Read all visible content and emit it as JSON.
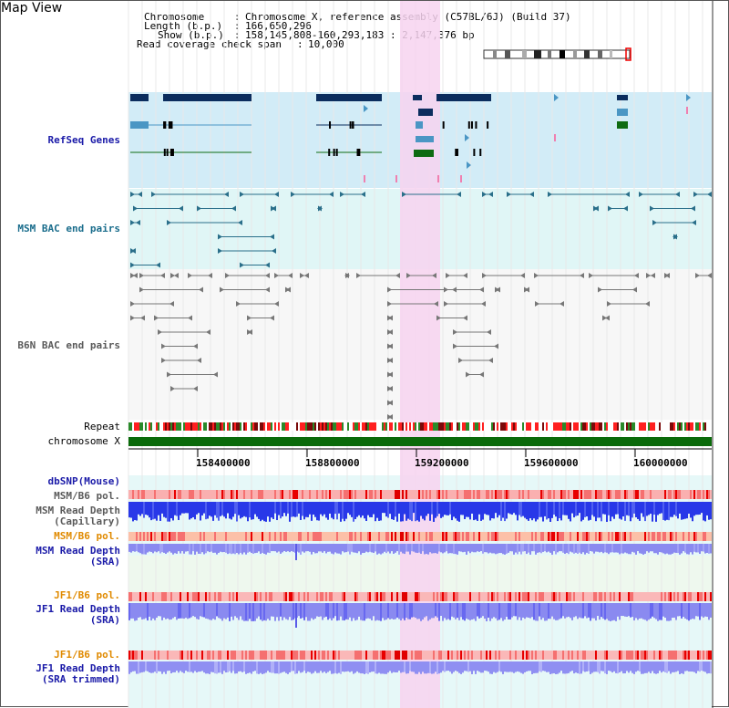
{
  "title": "Map View",
  "info": {
    "chromosome_label": "Chromosome",
    "chromosome_value": "Chromosome X, reference assembly (C57BL/6J) (Build 37)",
    "length_label": "Length (b.p.)",
    "length_value": "166,650,296",
    "show_label": "Show (b.p.)",
    "show_value": "158,145,808-160,293,183 : 2,147,376 bp",
    "coverage_label": "Read coverage check span",
    "coverage_value": "10,000"
  },
  "tracks": {
    "refseq": "RefSeq Genes",
    "msm_bac": "MSM BAC end pairs",
    "b6n_bac": "B6N BAC end pairs",
    "repeat": "Repeat",
    "chromosome": "chromosome X",
    "dbsnp": "dbSNP(Mouse)",
    "msm_b6_pol_1": "MSM/B6 pol.",
    "msm_read_depth_cap_1": "MSM Read Depth",
    "msm_read_depth_cap_2": "(Capillary)",
    "msm_b6_pol_2": "MSM/B6 pol.",
    "msm_read_depth_sra_1": "MSM Read Depth",
    "msm_read_depth_sra_2": "(SRA)",
    "jf1_b6_pol_1": "JF1/B6 pol.",
    "jf1_read_depth_sra_1": "JF1 Read Depth",
    "jf1_read_depth_sra_2": "(SRA)",
    "jf1_b6_pol_2": "JF1/B6 pol.",
    "jf1_read_depth_trim_1": "JF1 Read Depth",
    "jf1_read_depth_trim_2": "(SRA trimmed)"
  },
  "axis_ticks": [
    "158400000",
    "158800000",
    "159200000",
    "159600000",
    "160000000"
  ],
  "colors": {
    "refseq_bg": "#d2ecf7",
    "msm_bac_bg": "#e0f6f6",
    "highlight": "#f7d4f0",
    "gene_dark": "#0b2d5e",
    "gene_mid": "#4a96c4",
    "gene_green": "#0e6b12",
    "bac_teal": "#2a6f8a",
    "bac_gray": "#777777",
    "chromosome_bar": "#0a6a0a",
    "depth_blue": "#2838e8",
    "depth_light": "#8a8af0"
  }
}
